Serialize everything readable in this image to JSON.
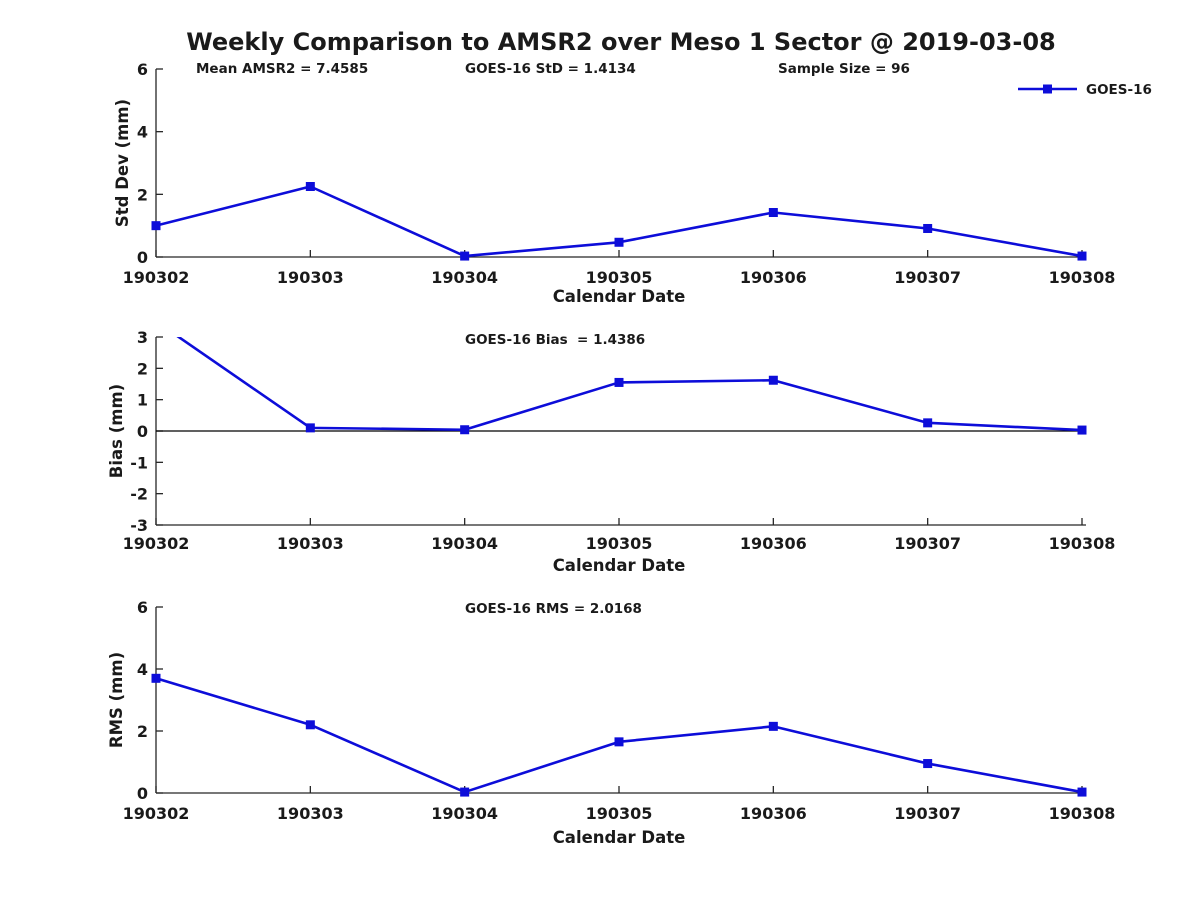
{
  "title": "Weekly Comparison to AMSR2 over Meso 1 Sector @ 2019-03-08",
  "legend": {
    "label": "GOES-16",
    "marker": "square",
    "position": "top-right"
  },
  "colors": {
    "line": "#0d0dd9",
    "axis": "#262626",
    "text": "#1a1a1a",
    "zero_line": "#000000"
  },
  "chart_data": [
    {
      "type": "line",
      "x_categories": [
        "190302",
        "190303",
        "190304",
        "190305",
        "190306",
        "190307",
        "190308"
      ],
      "series": [
        {
          "name": "GOES-16",
          "marker": "square",
          "values": [
            1.0,
            2.25,
            0.03,
            0.47,
            1.42,
            0.91,
            0.03
          ]
        }
      ],
      "xlabel": "Calendar Date",
      "ylabel": "Std Dev (mm)",
      "ylim": [
        0,
        6
      ],
      "yticks": [
        0,
        2,
        4,
        6
      ],
      "grid": false,
      "legend_visible": true,
      "annotations": [
        "Mean AMSR2 = 7.4585",
        "GOES-16 StD = 1.4134",
        "Sample Size = 96"
      ]
    },
    {
      "type": "line",
      "x_categories": [
        "190302",
        "190303",
        "190304",
        "190305",
        "190306",
        "190307",
        "190308"
      ],
      "series": [
        {
          "name": "GOES-16",
          "marker": "square",
          "values": [
            3.5,
            0.1,
            0.04,
            1.55,
            1.62,
            0.26,
            0.03
          ]
        }
      ],
      "xlabel": "Calendar Date",
      "ylabel": "Bias (mm)",
      "ylim": [
        -3,
        3
      ],
      "yticks": [
        3,
        2,
        1,
        0,
        -1,
        -2,
        -3
      ],
      "grid": false,
      "zero_line": true,
      "clip_to_ylim": true,
      "annotations": [
        "GOES-16 Bias  = 1.4386"
      ]
    },
    {
      "type": "line",
      "x_categories": [
        "190302",
        "190303",
        "190304",
        "190305",
        "190306",
        "190307",
        "190308"
      ],
      "series": [
        {
          "name": "GOES-16",
          "marker": "square",
          "values": [
            3.7,
            2.2,
            0.03,
            1.65,
            2.15,
            0.95,
            0.03
          ]
        }
      ],
      "xlabel": "Calendar Date",
      "ylabel": "RMS (mm)",
      "ylim": [
        0,
        6
      ],
      "yticks": [
        0,
        2,
        4,
        6
      ],
      "grid": false,
      "annotations": [
        "GOES-16 RMS = 2.0168"
      ]
    }
  ]
}
